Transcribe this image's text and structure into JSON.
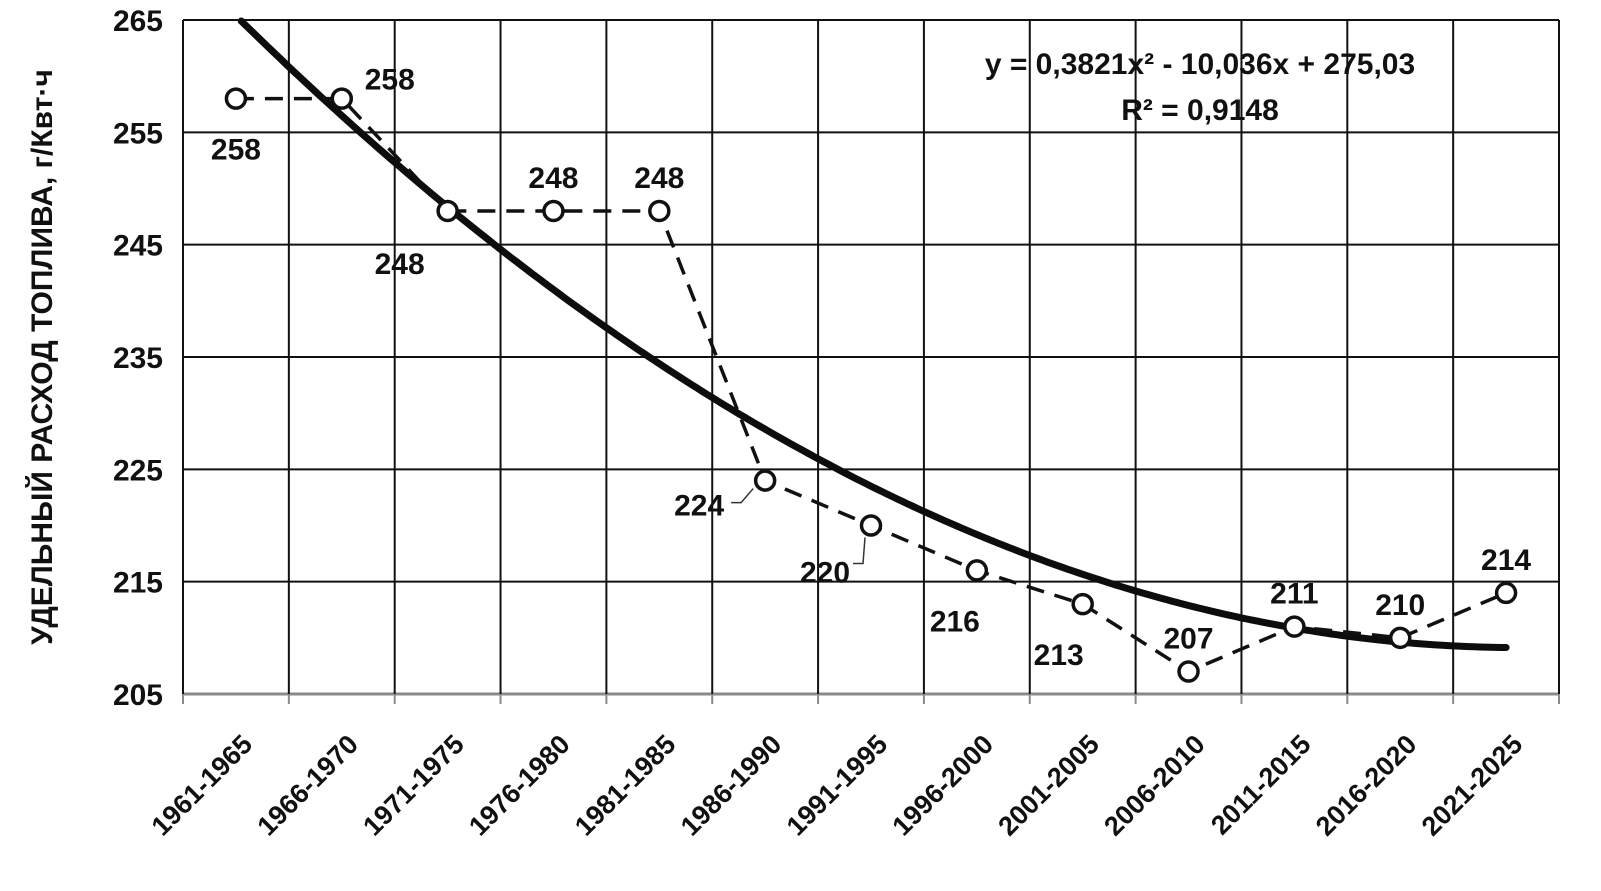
{
  "chart_data": {
    "type": "line",
    "ylabel": "УДЕЛЬНЫЙ РАСХОД ТОПЛИВА, г/Квт·ч",
    "xlabel": "",
    "ylim": [
      205,
      265
    ],
    "yticks": [
      205,
      215,
      225,
      235,
      245,
      255,
      265
    ],
    "grid": true,
    "categories": [
      "1961-1965",
      "1966-1970",
      "1971-1975",
      "1976-1980",
      "1981-1985",
      "1986-1990",
      "1991-1995",
      "1996-2000",
      "2001-2005",
      "2006-2010",
      "2011-2015",
      "2016-2020",
      "2021-2025"
    ],
    "series": [
      {
        "style": "dashed-with-circle-markers",
        "values": [
          258,
          258,
          248,
          248,
          248,
          224,
          220,
          216,
          213,
          207,
          211,
          210,
          214
        ],
        "data_labels": [
          "258",
          "258",
          "248",
          "248",
          "248",
          "224",
          "220",
          "216",
          "213",
          "207",
          "211",
          "210",
          "214"
        ]
      }
    ],
    "trendline": {
      "type": "polynomial",
      "order": 2,
      "coefficients": [
        0.3821,
        -10.036,
        275.03
      ],
      "equation": "y = 0,3821x² - 10,036x + 275,03",
      "r_squared": "R² = 0,9148"
    }
  }
}
